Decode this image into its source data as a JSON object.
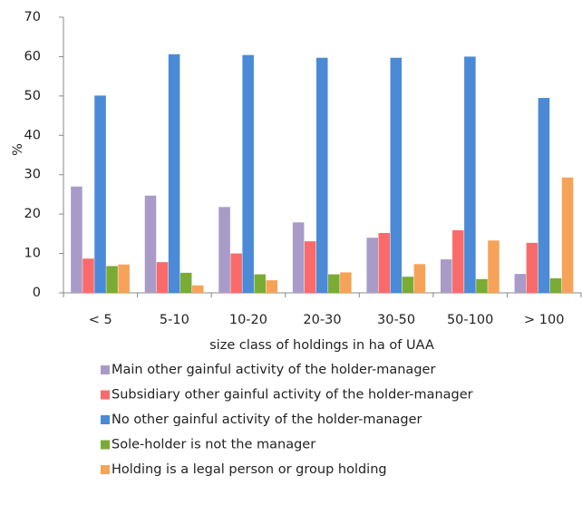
{
  "chart_data": {
    "type": "bar",
    "x_label": "size class of holdings in ha of UAA",
    "y_label": "%",
    "categories": [
      "< 5",
      "5-10",
      "10-20",
      "20-30",
      "30-50",
      "50-100",
      "> 100"
    ],
    "series": [
      {
        "name": "Main other gainful activity of the holder-manager",
        "color": "#a99bc8",
        "values": [
          27,
          24.7,
          21.8,
          17.9,
          14,
          8.5,
          4.8
        ]
      },
      {
        "name": "Subsidiary other gainful activity of the holder-manager",
        "color": "#f96b6b",
        "values": [
          8.7,
          7.8,
          10,
          13.1,
          15.2,
          15.9,
          12.7
        ]
      },
      {
        "name": "No other gainful activity of the holder-manager",
        "color": "#4a8ad6",
        "values": [
          50.1,
          60.6,
          60.4,
          59.7,
          59.7,
          60,
          49.5
        ]
      },
      {
        "name": "Sole-holder is not the manager",
        "color": "#7aab35",
        "values": [
          6.8,
          5.1,
          4.7,
          4.7,
          4.1,
          3.5,
          3.7
        ]
      },
      {
        "name": "Holding is a legal person or group holding",
        "color": "#f7a259",
        "values": [
          7.2,
          1.9,
          3.2,
          5.2,
          7.3,
          13.3,
          29.3
        ]
      }
    ],
    "ylim": [
      0,
      70
    ],
    "yticks": [
      0,
      10,
      20,
      30,
      40,
      50,
      60,
      70
    ],
    "grid": false,
    "legend": "bottom"
  }
}
